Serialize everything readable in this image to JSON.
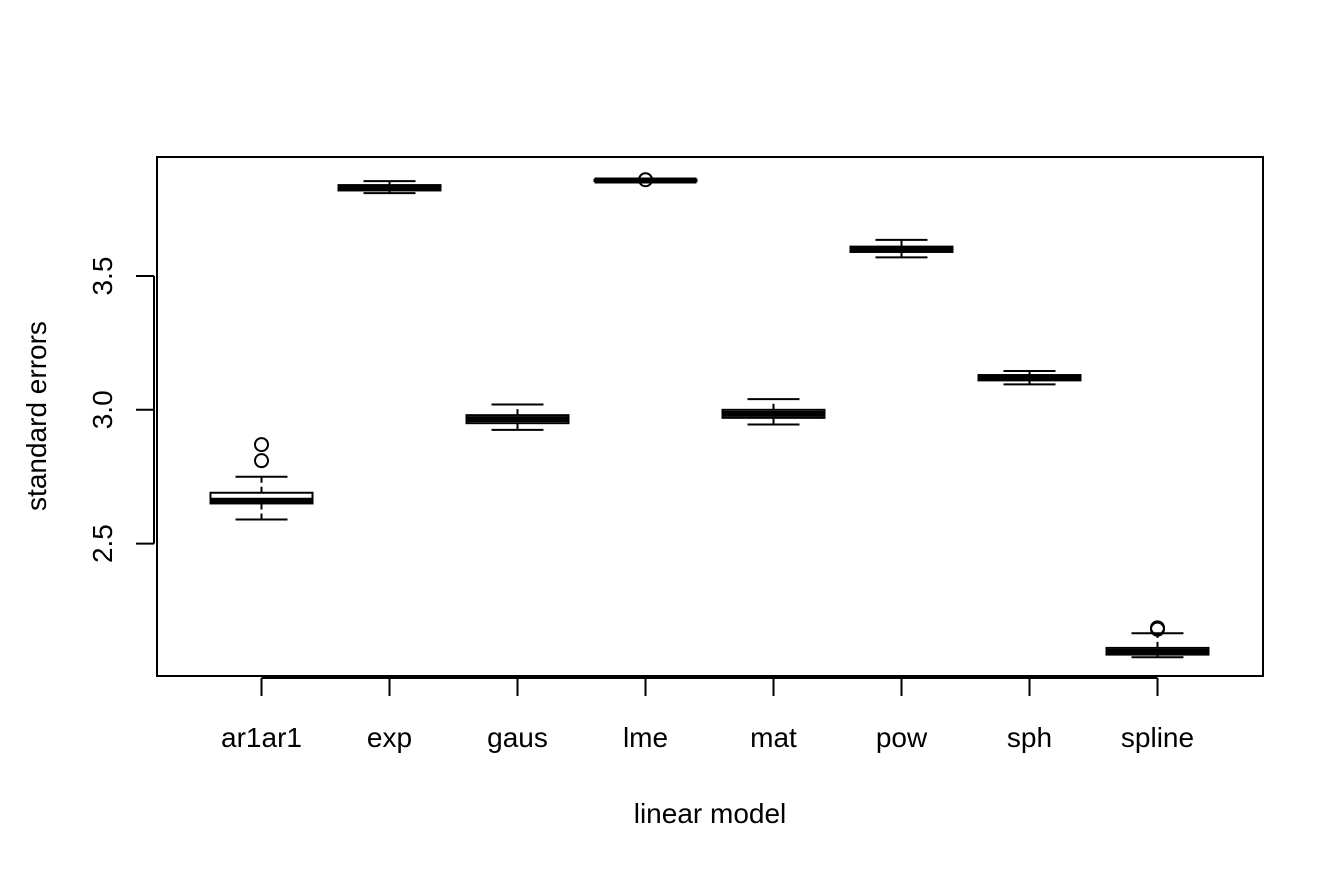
{
  "chart_data": {
    "type": "boxplot",
    "title": "",
    "xlabel": "linear model",
    "ylabel": "standard errors",
    "ylim": [
      2.005,
      3.945
    ],
    "yticks": [
      2.5,
      3.0,
      3.5
    ],
    "ytick_labels": [
      "2.5",
      "3.0",
      "3.5"
    ],
    "categories": [
      "ar1ar1",
      "exp",
      "gaus",
      "lme",
      "mat",
      "pow",
      "sph",
      "spline"
    ],
    "boxes": [
      {
        "category": "ar1ar1",
        "whisker_low": 2.59,
        "q1": 2.65,
        "median": 2.66,
        "q3": 2.69,
        "whisker_high": 2.75,
        "outliers": [
          2.81,
          2.87
        ]
      },
      {
        "category": "exp",
        "whisker_low": 3.81,
        "q1": 3.82,
        "median": 3.83,
        "q3": 3.84,
        "whisker_high": 3.855,
        "outliers": []
      },
      {
        "category": "gaus",
        "whisker_low": 2.925,
        "q1": 2.95,
        "median": 2.965,
        "q3": 2.98,
        "whisker_high": 3.02,
        "outliers": []
      },
      {
        "category": "lme",
        "whisker_low": 3.855,
        "q1": 3.855,
        "median": 3.857,
        "q3": 3.86,
        "whisker_high": 3.86,
        "outliers": [
          3.86
        ]
      },
      {
        "category": "mat",
        "whisker_low": 2.945,
        "q1": 2.97,
        "median": 2.985,
        "q3": 3.0,
        "whisker_high": 3.04,
        "outliers": []
      },
      {
        "category": "pow",
        "whisker_low": 3.57,
        "q1": 3.59,
        "median": 3.6,
        "q3": 3.61,
        "whisker_high": 3.635,
        "outliers": []
      },
      {
        "category": "sph",
        "whisker_low": 3.095,
        "q1": 3.11,
        "median": 3.12,
        "q3": 3.13,
        "whisker_high": 3.145,
        "outliers": []
      },
      {
        "category": "spline",
        "whisker_low": 2.075,
        "q1": 2.085,
        "median": 2.095,
        "q3": 2.11,
        "whisker_high": 2.165,
        "outliers": [
          2.18,
          2.185
        ]
      }
    ],
    "grid": false,
    "legend": "none"
  }
}
